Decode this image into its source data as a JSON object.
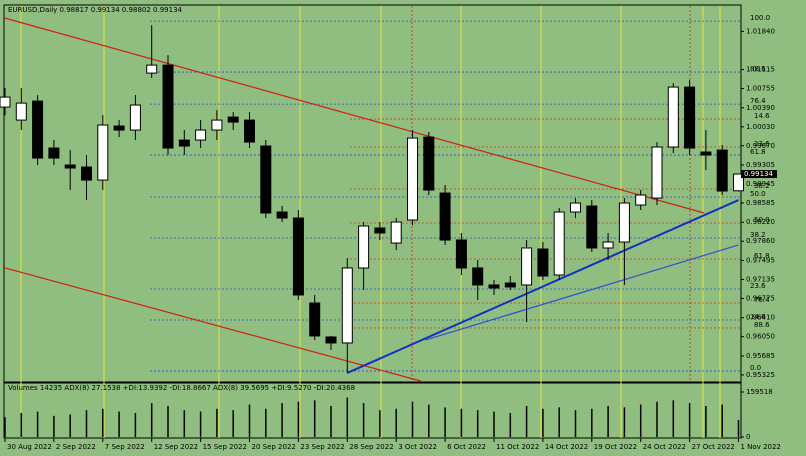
{
  "chart_data": {
    "type": "candlestick",
    "title": "EURUSD,Daily  0.98817 0.99134 0.98802 0.99134",
    "categories": [
      "30 Aug 2022",
      null,
      null,
      "2 Sep 2022",
      null,
      null,
      "7 Sep 2022",
      null,
      null,
      "12 Sep 2022",
      null,
      null,
      "15 Sep 2022",
      null,
      null,
      "20 Sep 2022",
      null,
      null,
      "23 Sep 2022",
      null,
      null,
      "28 Sep 2022",
      null,
      null,
      "3 Oct 2022",
      null,
      null,
      "6 Oct 2022",
      null,
      null,
      "11 Oct 2022",
      null,
      null,
      "14 Oct 2022",
      null,
      null,
      "19 Oct 2022",
      null,
      null,
      "24 Oct 2022",
      null,
      null,
      "27 Oct 2022",
      null,
      null,
      "1 Nov 2022"
    ],
    "open": [
      1.00404,
      1.00157,
      1.00517,
      0.99627,
      0.99305,
      0.99267,
      0.9902,
      1.00044,
      0.99968,
      1.01048,
      1.01199,
      0.99778,
      0.99778,
      0.99968,
      1.00214,
      1.00157,
      0.99665,
      0.98414,
      0.983,
      0.96689,
      0.96045,
      0.95931,
      0.97353,
      0.98111,
      0.97826,
      0.98262,
      0.99835,
      0.98774,
      0.97883,
      0.97353,
      0.97031,
      0.97068,
      0.97031,
      0.97713,
      0.9722,
      0.98414,
      0.98528,
      0.97732,
      0.97845,
      0.98547,
      0.98679,
      0.99646,
      1.00783,
      0.99551,
      0.99589,
      0.98817
    ],
    "high": [
      1.00764,
      1.00764,
      1.00631,
      0.99778,
      0.99589,
      0.99494,
      1.00252,
      1.00157,
      1.00631,
      1.01957,
      1.01389,
      0.99968,
      1.00157,
      1.00347,
      1.00309,
      1.00309,
      0.99778,
      0.98528,
      0.98452,
      0.96841,
      0.96064,
      0.97542,
      0.98224,
      0.98224,
      0.983,
      0.99968,
      0.9993,
      0.98926,
      0.98016,
      0.97504,
      0.97125,
      0.97201,
      0.97883,
      0.97845,
      0.9849,
      0.98679,
      0.98641,
      0.98016,
      0.98679,
      0.98831,
      0.9974,
      1.00858,
      1.00915,
      0.99968,
      0.99684,
      0.99134
    ],
    "low": [
      1.00252,
      0.99968,
      0.99305,
      0.99305,
      0.98831,
      0.98641,
      0.98831,
      0.99835,
      0.99778,
      1.00953,
      0.99494,
      0.99494,
      0.99627,
      0.99778,
      0.99968,
      0.99627,
      0.983,
      0.98224,
      0.96746,
      0.95988,
      0.95799,
      0.95363,
      0.96936,
      0.97883,
      0.97694,
      0.98168,
      0.98736,
      0.97789,
      0.9722,
      0.96746,
      0.96841,
      0.96936,
      0.96329,
      0.97125,
      0.97125,
      0.983,
      0.97656,
      0.97504,
      0.97031,
      0.98452,
      0.98547,
      0.99532,
      0.99494,
      0.9921,
      0.98736,
      0.98802
    ],
    "close": [
      1.00593,
      1.00479,
      0.99437,
      0.99437,
      0.99248,
      0.9902,
      1.00063,
      0.99968,
      1.00442,
      1.01199,
      0.99627,
      0.99665,
      0.99968,
      1.00157,
      1.00119,
      0.9974,
      0.98395,
      0.983,
      0.96841,
      0.96064,
      0.95931,
      0.97353,
      0.98149,
      0.98016,
      0.98224,
      0.99816,
      0.98831,
      0.97883,
      0.97353,
      0.97031,
      0.96974,
      0.96993,
      0.97732,
      0.97201,
      0.98414,
      0.98584,
      0.97732,
      0.97845,
      0.98584,
      0.98736,
      0.99646,
      1.00783,
      0.99627,
      0.99494,
      0.98812,
      0.99134
    ],
    "up_color": "#ffffff",
    "down_color": "#000000",
    "ylim": [
      0.9521,
      1.0232
    ],
    "yticks": [
      {
        "value": 1.0184,
        "label": "1.01840"
      },
      {
        "value": 1.01115,
        "label": "1.01115"
      },
      {
        "value": 1.00755,
        "label": "1.00755"
      },
      {
        "value": 1.0039,
        "label": "1.00390"
      },
      {
        "value": 1.0003,
        "label": "1.00030"
      },
      {
        "value": 0.9967,
        "label": "0.99670"
      },
      {
        "value": 0.99305,
        "label": "0.99305"
      },
      {
        "value": 0.98945,
        "label": "0.98945"
      },
      {
        "value": 0.98585,
        "label": "0.98585"
      },
      {
        "value": 0.9822,
        "label": "0.98220"
      },
      {
        "value": 0.9786,
        "label": "0.97860"
      },
      {
        "value": 0.97495,
        "label": "0.97495"
      },
      {
        "value": 0.97135,
        "label": "0.97135"
      },
      {
        "value": 0.96775,
        "label": "0.96775"
      },
      {
        "value": 0.9641,
        "label": "0.96410"
      },
      {
        "value": 0.9605,
        "label": "0.96050"
      },
      {
        "value": 0.95685,
        "label": "0.95685"
      },
      {
        "value": 0.95325,
        "label": "0.95325"
      }
    ],
    "last_price": {
      "value": 0.99134,
      "label": "0.99134"
    },
    "fib_levels": [
      {
        "color": "#2a4fd0",
        "levels": [
          {
            "value": 1.02033,
            "label": "100.0"
          },
          {
            "value": 1.01067,
            "label": "88.6"
          },
          {
            "value": 1.0046,
            "label": "76.4"
          },
          {
            "value": 0.99494,
            "label": "61.8"
          },
          {
            "value": 0.98698,
            "label": "50.0"
          },
          {
            "value": 0.97921,
            "label": "38.2"
          },
          {
            "value": 0.96955,
            "label": "23.6"
          },
          {
            "value": 0.96367,
            "label": "14.6"
          },
          {
            "value": 0.95401,
            "label": "0.0"
          }
        ]
      },
      {
        "color": "#c8401a",
        "levels": [
          {
            "value": 1.00176,
            "label": "14.6"
          },
          {
            "value": 0.99646,
            "label": "23.6"
          },
          {
            "value": 0.9885,
            "label": "38.2"
          },
          {
            "value": 0.98205,
            "label": "50.0"
          },
          {
            "value": 0.97523,
            "label": "61.8"
          },
          {
            "value": 0.96689,
            "label": "76.4"
          },
          {
            "value": 0.96216,
            "label": "88.6"
          }
        ]
      }
    ],
    "trendlines": [
      {
        "color": "#d02010",
        "x": [
          0,
          42.9
        ],
        "y": [
          1.0209,
          0.98395
        ]
      },
      {
        "color": "#d02010",
        "x": [
          0,
          25.5
        ],
        "y": [
          0.97353,
          0.9521
        ]
      },
      {
        "color": "#1030c0",
        "x": [
          21,
          45
        ],
        "y": [
          0.95363,
          0.98641
        ]
      },
      {
        "color": "#3050d0",
        "x": [
          25.8,
          45
        ],
        "y": [
          0.95988,
          0.97789
        ]
      }
    ],
    "volume": {
      "header": "Volumes 14235  ADX(8) 27.1538 +DI:13.9392 -DI:18.8667  ADX(8) 39.5695 +DI:9.5270 -DI:20.4368",
      "color": "#000000",
      "values": [
        70000,
        85000,
        90000,
        75000,
        80000,
        95000,
        100000,
        90000,
        85000,
        120000,
        110000,
        95000,
        90000,
        100000,
        95000,
        115000,
        100000,
        120000,
        125000,
        130000,
        110000,
        140000,
        120000,
        95000,
        100000,
        125000,
        115000,
        105000,
        100000,
        95000,
        90000,
        85000,
        110000,
        100000,
        105000,
        95000,
        100000,
        110000,
        105000,
        115000,
        125000,
        130000,
        120000,
        110000,
        115000,
        60000
      ],
      "ylim": [
        0,
        159518
      ],
      "yticks": [
        159518,
        0
      ]
    }
  }
}
